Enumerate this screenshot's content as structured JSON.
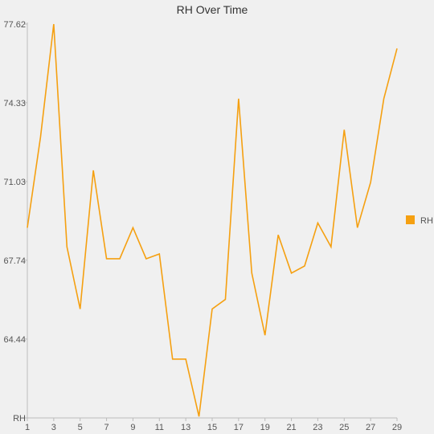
{
  "chart_data": {
    "type": "line",
    "title": "RH Over Time",
    "x": [
      1,
      2,
      3,
      4,
      5,
      6,
      7,
      8,
      9,
      10,
      11,
      12,
      13,
      14,
      15,
      16,
      17,
      18,
      19,
      20,
      21,
      22,
      23,
      24,
      25,
      26,
      27,
      28,
      29
    ],
    "x_tick_labels": [
      "1",
      "3",
      "5",
      "7",
      "9",
      "11",
      "13",
      "15",
      "17",
      "19",
      "21",
      "23",
      "25",
      "27",
      "29"
    ],
    "series": [
      {
        "name": "RH",
        "color": "#f5a011",
        "values": [
          69.1,
          72.9,
          77.62,
          68.3,
          65.7,
          71.5,
          67.8,
          67.8,
          69.1,
          67.8,
          68.0,
          63.6,
          63.6,
          61.2,
          65.7,
          66.1,
          74.5,
          67.2,
          64.6,
          68.8,
          67.2,
          67.5,
          69.3,
          68.3,
          73.2,
          69.1,
          71.0,
          74.5,
          76.6
        ]
      }
    ],
    "y_tick_values": [
      61.14,
      64.44,
      67.74,
      71.03,
      74.33,
      77.62
    ],
    "y_tick_labels": [
      "RH",
      "64.44",
      "67.74",
      "71.03",
      "74.33",
      "77.62"
    ],
    "ylim": [
      61.14,
      77.62
    ],
    "xlim": [
      1,
      29
    ],
    "legend": "right",
    "grid": false
  }
}
